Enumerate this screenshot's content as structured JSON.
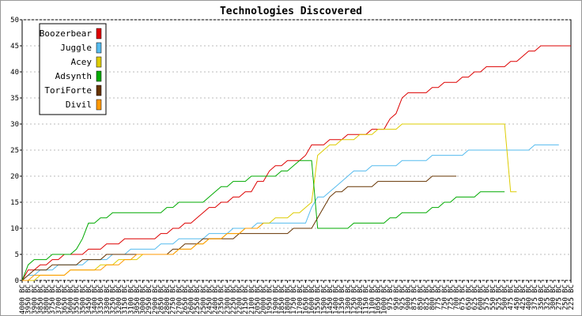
{
  "chart_data": {
    "type": "line",
    "title": "Technologies Discovered",
    "categories": [
      "4000 BC",
      "3950 BC",
      "3900 BC",
      "3850 BC",
      "3800 BC",
      "3750 BC",
      "3700 BC",
      "3650 BC",
      "3600 BC",
      "3550 BC",
      "3500 BC",
      "3450 BC",
      "3400 BC",
      "3350 BC",
      "3300 BC",
      "3250 BC",
      "3200 BC",
      "3150 BC",
      "3100 BC",
      "3050 BC",
      "3000 BC",
      "2950 BC",
      "2900 BC",
      "2850 BC",
      "2800 BC",
      "2750 BC",
      "2700 BC",
      "2650 BC",
      "2600 BC",
      "2550 BC",
      "2500 BC",
      "2450 BC",
      "2400 BC",
      "2350 BC",
      "2300 BC",
      "2250 BC",
      "2200 BC",
      "2150 BC",
      "2100 BC",
      "2050 BC",
      "2000 BC",
      "1950 BC",
      "1900 BC",
      "1850 BC",
      "1800 BC",
      "1750 BC",
      "1700 BC",
      "1650 BC",
      "1600 BC",
      "1550 BC",
      "1500 BC",
      "1450 BC",
      "1400 BC",
      "1350 BC",
      "1300 BC",
      "1250 BC",
      "1200 BC",
      "1150 BC",
      "1100 BC",
      "1050 BC",
      "1000 BC",
      "975 BC",
      "950 BC",
      "925 BC",
      "900 BC",
      "875 BC",
      "850 BC",
      "825 BC",
      "800 BC",
      "775 BC",
      "750 BC",
      "725 BC",
      "700 BC",
      "675 BC",
      "650 BC",
      "625 BC",
      "600 BC",
      "575 BC",
      "550 BC",
      "525 BC",
      "500 BC",
      "475 BC",
      "450 BC",
      "425 BC",
      "400 BC",
      "375 BC",
      "350 BC",
      "325 BC",
      "300 BC",
      "275 BC",
      "250 BC",
      "225 BC"
    ],
    "series": [
      {
        "name": "Boozerbear",
        "color": "#dd0000",
        "values": [
          0,
          2,
          2,
          3,
          3,
          4,
          4,
          5,
          5,
          5,
          5,
          6,
          6,
          6,
          7,
          7,
          7,
          8,
          8,
          8,
          8,
          8,
          8,
          9,
          9,
          10,
          10,
          11,
          11,
          12,
          13,
          14,
          14,
          15,
          15,
          16,
          16,
          17,
          17,
          19,
          19,
          21,
          22,
          22,
          23,
          23,
          23,
          24,
          26,
          26,
          26,
          27,
          27,
          27,
          28,
          28,
          28,
          28,
          29,
          29,
          29,
          31,
          32,
          35,
          36,
          36,
          36,
          36,
          37,
          37,
          38,
          38,
          38,
          39,
          39,
          40,
          40,
          41,
          41,
          41,
          41,
          42,
          42,
          43,
          44,
          44,
          45,
          45,
          45,
          45,
          45,
          45
        ]
      },
      {
        "name": "Juggle",
        "color": "#55bbee",
        "values": [
          0,
          1,
          1,
          2,
          2,
          2,
          3,
          3,
          3,
          3,
          3,
          4,
          4,
          4,
          4,
          5,
          5,
          5,
          6,
          6,
          6,
          6,
          6,
          7,
          7,
          7,
          8,
          8,
          8,
          8,
          8,
          9,
          9,
          9,
          9,
          10,
          10,
          10,
          10,
          11,
          11,
          11,
          11,
          11,
          11,
          11,
          11,
          11,
          14,
          16,
          16,
          17,
          18,
          19,
          20,
          21,
          21,
          21,
          22,
          22,
          22,
          22,
          22,
          23,
          23,
          23,
          23,
          23,
          24,
          24,
          24,
          24,
          24,
          24,
          25,
          25,
          25,
          25,
          25,
          25,
          25,
          25,
          25,
          25,
          25,
          26,
          26,
          26,
          26,
          26,
          null,
          null
        ]
      },
      {
        "name": "Acey",
        "color": "#ddcc00",
        "values": [
          0,
          0,
          0,
          1,
          1,
          1,
          1,
          1,
          2,
          2,
          2,
          2,
          2,
          3,
          3,
          3,
          4,
          4,
          4,
          4,
          5,
          5,
          5,
          5,
          5,
          5,
          6,
          6,
          6,
          7,
          7,
          8,
          8,
          8,
          9,
          9,
          9,
          10,
          10,
          10,
          11,
          11,
          12,
          12,
          12,
          13,
          13,
          14,
          15,
          24,
          25,
          26,
          26,
          27,
          27,
          27,
          28,
          28,
          28,
          29,
          29,
          29,
          29,
          30,
          30,
          30,
          30,
          30,
          30,
          30,
          30,
          30,
          30,
          30,
          30,
          30,
          30,
          30,
          30,
          30,
          30,
          17,
          17,
          null,
          null,
          null,
          null,
          null,
          null,
          null,
          null,
          null
        ]
      },
      {
        "name": "Adsynth",
        "color": "#00aa00",
        "values": [
          0,
          3,
          4,
          4,
          4,
          5,
          5,
          5,
          5,
          6,
          8,
          11,
          11,
          12,
          12,
          13,
          13,
          13,
          13,
          13,
          13,
          13,
          13,
          13,
          14,
          14,
          15,
          15,
          15,
          15,
          15,
          16,
          17,
          18,
          18,
          19,
          19,
          19,
          20,
          20,
          20,
          20,
          20,
          21,
          21,
          22,
          23,
          23,
          23,
          10,
          10,
          10,
          10,
          10,
          10,
          11,
          11,
          11,
          11,
          11,
          11,
          12,
          12,
          13,
          13,
          13,
          13,
          13,
          14,
          14,
          15,
          15,
          16,
          16,
          16,
          16,
          17,
          17,
          17,
          17,
          17,
          null,
          null,
          null,
          null,
          null,
          null,
          null,
          null,
          null,
          null,
          null
        ]
      },
      {
        "name": "ToriForte",
        "color": "#663300",
        "values": [
          0,
          1,
          2,
          2,
          2,
          3,
          3,
          3,
          3,
          3,
          4,
          4,
          4,
          4,
          5,
          5,
          5,
          5,
          5,
          5,
          5,
          5,
          5,
          5,
          5,
          6,
          6,
          7,
          7,
          7,
          8,
          8,
          8,
          8,
          8,
          8,
          9,
          9,
          9,
          9,
          9,
          9,
          9,
          9,
          9,
          10,
          10,
          10,
          10,
          12,
          14,
          16,
          17,
          17,
          18,
          18,
          18,
          18,
          18,
          19,
          19,
          19,
          19,
          19,
          19,
          19,
          19,
          19,
          20,
          20,
          20,
          20,
          20,
          null,
          null,
          null,
          null,
          null,
          null,
          null,
          null,
          null,
          null,
          null,
          null,
          null,
          null,
          null,
          null,
          null,
          null,
          null
        ]
      },
      {
        "name": "Divil",
        "color": "#ff9900",
        "values": [
          0,
          0,
          1,
          1,
          1,
          1,
          1,
          1,
          2,
          2,
          2,
          2,
          2,
          2,
          3,
          3,
          3,
          4,
          4,
          5,
          5,
          5,
          5,
          5,
          5,
          5,
          6,
          6,
          6,
          7,
          7,
          8,
          8,
          8,
          9,
          9,
          9,
          10,
          10,
          10,
          11,
          null,
          null,
          null,
          null,
          null,
          null,
          null,
          null,
          null,
          null,
          null,
          null,
          null,
          null,
          null,
          null,
          null,
          null,
          null,
          null,
          null,
          null,
          null,
          null,
          null,
          null,
          null,
          null,
          null,
          null,
          null,
          null,
          null,
          null,
          null,
          null,
          null,
          null,
          null,
          null,
          null,
          null,
          null,
          null,
          null,
          null,
          null,
          null,
          null,
          null,
          null
        ]
      }
    ],
    "ylim": [
      0,
      50
    ],
    "yticks": [
      0,
      5,
      10,
      15,
      20,
      25,
      30,
      35,
      40,
      45,
      50
    ],
    "grid": true,
    "legend": "top-left"
  }
}
